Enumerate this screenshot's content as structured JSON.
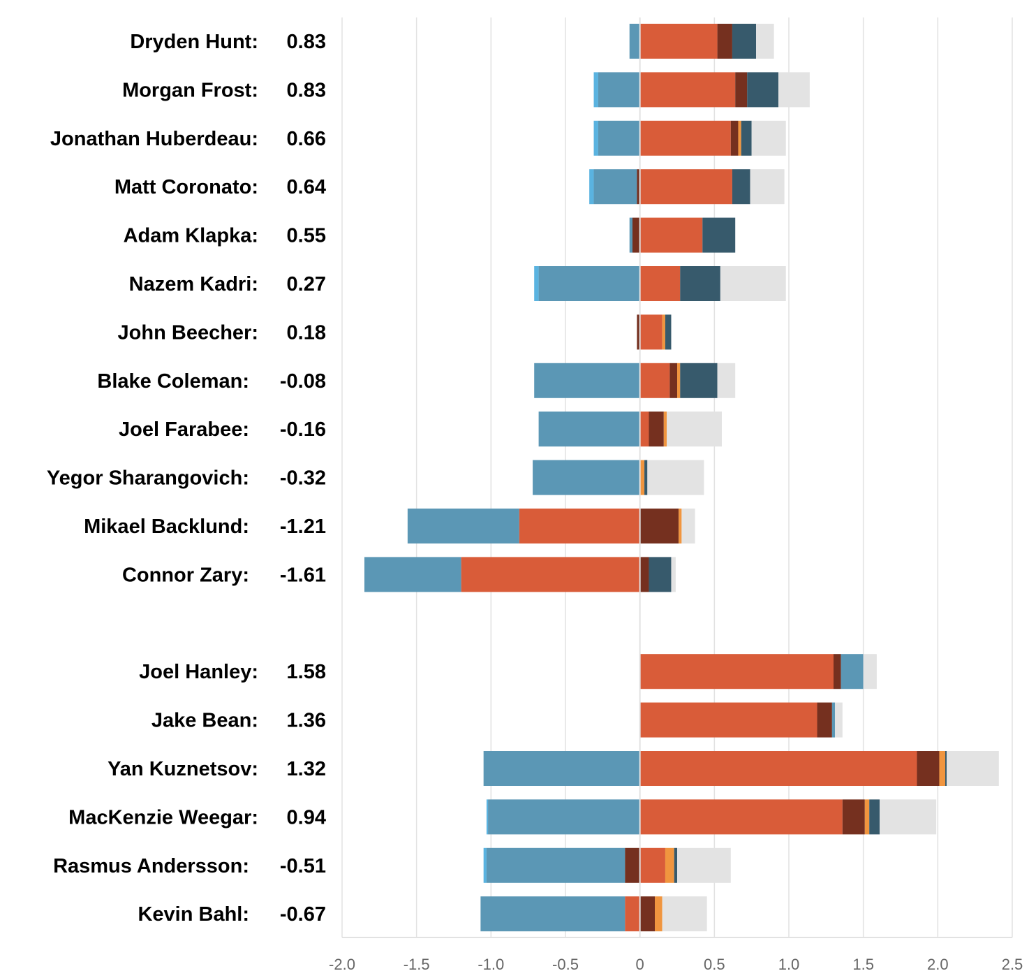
{
  "chart_data": {
    "type": "bar",
    "stacked": true,
    "diverging": true,
    "title": "",
    "xlabel": "",
    "ylabel": "",
    "xlim": [
      -2.0,
      2.5
    ],
    "xticks": [
      "-2.0",
      "-1.5",
      "-1.0",
      "-0.5",
      "0",
      "0.5",
      "1.0",
      "1.5",
      "2.0",
      "2.5"
    ],
    "xtick_values": [
      -2.0,
      -1.5,
      -1.0,
      -0.5,
      0,
      0.5,
      1.0,
      1.5,
      2.0,
      2.5
    ],
    "grid": true,
    "colors": {
      "orange": "#d95c39",
      "brown": "#75301f",
      "slate": "#375a6c",
      "gray": "#e3e3e3",
      "steel": "#5b97b5",
      "lightblue": "#5ab3e0",
      "lightorange": "#f0953f"
    },
    "groups": [
      {
        "rows": [
          {
            "name": "Dryden Hunt:",
            "value": "0.83",
            "segments": [
              [
                "steel",
                -0.07,
                0
              ],
              [
                "orange",
                0,
                0.52
              ],
              [
                "brown",
                0.52,
                0.62
              ],
              [
                "slate",
                0.62,
                0.78
              ],
              [
                "gray",
                0.78,
                0.9
              ]
            ]
          },
          {
            "name": "Morgan Frost:",
            "value": "0.83",
            "segments": [
              [
                "lightblue",
                -0.31,
                -0.28
              ],
              [
                "steel",
                -0.28,
                0
              ],
              [
                "orange",
                0,
                0.64
              ],
              [
                "brown",
                0.64,
                0.72
              ],
              [
                "slate",
                0.72,
                0.93
              ],
              [
                "gray",
                0.93,
                1.14
              ]
            ]
          },
          {
            "name": "Jonathan Huberdeau:",
            "value": "0.66",
            "segments": [
              [
                "lightblue",
                -0.31,
                -0.28
              ],
              [
                "steel",
                -0.28,
                0
              ],
              [
                "orange",
                0,
                0.61
              ],
              [
                "brown",
                0.61,
                0.66
              ],
              [
                "lightorange",
                0.66,
                0.68
              ],
              [
                "slate",
                0.68,
                0.75
              ],
              [
                "gray",
                0.75,
                0.98
              ]
            ]
          },
          {
            "name": "Matt Coronato:",
            "value": "0.64",
            "segments": [
              [
                "lightblue",
                -0.34,
                -0.31
              ],
              [
                "steel",
                -0.31,
                -0.02
              ],
              [
                "brown",
                -0.02,
                0
              ],
              [
                "orange",
                0,
                0.62
              ],
              [
                "slate",
                0.62,
                0.74
              ],
              [
                "gray",
                0.74,
                0.97
              ]
            ]
          },
          {
            "name": "Adam Klapka:",
            "value": "0.55",
            "segments": [
              [
                "steel",
                -0.07,
                -0.05
              ],
              [
                "brown",
                -0.05,
                0
              ],
              [
                "orange",
                0,
                0.42
              ],
              [
                "slate",
                0.42,
                0.64
              ]
            ]
          },
          {
            "name": "Nazem Kadri:",
            "value": "0.27",
            "segments": [
              [
                "lightblue",
                -0.71,
                -0.68
              ],
              [
                "steel",
                -0.68,
                0
              ],
              [
                "orange",
                0,
                0.27
              ],
              [
                "slate",
                0.27,
                0.54
              ],
              [
                "gray",
                0.54,
                0.98
              ]
            ]
          },
          {
            "name": "John Beecher:",
            "value": "0.18",
            "segments": [
              [
                "brown",
                -0.02,
                0
              ],
              [
                "orange",
                0,
                0.15
              ],
              [
                "lightorange",
                0.15,
                0.17
              ],
              [
                "slate",
                0.17,
                0.21
              ]
            ]
          },
          {
            "name": "Blake Coleman:",
            "value": "-0.08",
            "segments": [
              [
                "steel",
                -0.71,
                0
              ],
              [
                "orange",
                0,
                0.2
              ],
              [
                "brown",
                0.2,
                0.25
              ],
              [
                "lightorange",
                0.25,
                0.27
              ],
              [
                "slate",
                0.27,
                0.52
              ],
              [
                "gray",
                0.52,
                0.64
              ]
            ]
          },
          {
            "name": "Joel Farabee:",
            "value": "-0.16",
            "segments": [
              [
                "steel",
                -0.68,
                0
              ],
              [
                "orange",
                0,
                0.06
              ],
              [
                "brown",
                0.06,
                0.16
              ],
              [
                "lightorange",
                0.16,
                0.18
              ],
              [
                "gray",
                0.18,
                0.55
              ]
            ]
          },
          {
            "name": "Yegor Sharangovich:",
            "value": "-0.32",
            "segments": [
              [
                "steel",
                -0.72,
                0
              ],
              [
                "lightorange",
                0,
                0.03
              ],
              [
                "slate",
                0.03,
                0.05
              ],
              [
                "gray",
                0.05,
                0.43
              ]
            ]
          },
          {
            "name": "Mikael Backlund:",
            "value": "-1.21",
            "segments": [
              [
                "steel",
                -1.56,
                -0.81
              ],
              [
                "orange",
                -0.81,
                0
              ],
              [
                "brown",
                0,
                0.26
              ],
              [
                "lightorange",
                0.26,
                0.28
              ],
              [
                "gray",
                0.28,
                0.37
              ]
            ]
          },
          {
            "name": "Connor Zary:",
            "value": "-1.61",
            "segments": [
              [
                "steel",
                -1.85,
                -1.2
              ],
              [
                "orange",
                -1.2,
                0
              ],
              [
                "brown",
                0,
                0.06
              ],
              [
                "slate",
                0.06,
                0.21
              ],
              [
                "gray",
                0.21,
                0.24
              ]
            ]
          }
        ]
      },
      {
        "rows": [
          {
            "name": "Joel Hanley:",
            "value": "1.58",
            "segments": [
              [
                "orange",
                0,
                1.3
              ],
              [
                "brown",
                1.3,
                1.35
              ],
              [
                "steel",
                1.35,
                1.5
              ],
              [
                "gray",
                1.5,
                1.59
              ]
            ]
          },
          {
            "name": "Jake Bean:",
            "value": "1.36",
            "segments": [
              [
                "orange",
                0,
                1.19
              ],
              [
                "brown",
                1.19,
                1.29
              ],
              [
                "steel",
                1.29,
                1.31
              ],
              [
                "gray",
                1.31,
                1.36
              ]
            ]
          },
          {
            "name": "Yan Kuznetsov:",
            "value": "1.32",
            "segments": [
              [
                "steel",
                -1.05,
                0
              ],
              [
                "orange",
                0,
                1.86
              ],
              [
                "brown",
                1.86,
                2.01
              ],
              [
                "lightorange",
                2.01,
                2.05
              ],
              [
                "slate",
                2.05,
                2.06
              ],
              [
                "gray",
                2.06,
                2.41
              ]
            ]
          },
          {
            "name": "MacKenzie Weegar:",
            "value": "0.94",
            "segments": [
              [
                "lightblue",
                -1.03,
                -1.02
              ],
              [
                "steel",
                -1.02,
                0
              ],
              [
                "orange",
                0,
                1.36
              ],
              [
                "brown",
                1.36,
                1.51
              ],
              [
                "lightorange",
                1.51,
                1.54
              ],
              [
                "slate",
                1.54,
                1.61
              ],
              [
                "gray",
                1.61,
                1.99
              ]
            ]
          },
          {
            "name": "Rasmus Andersson:",
            "value": "-0.51",
            "segments": [
              [
                "lightblue",
                -1.05,
                -1.03
              ],
              [
                "steel",
                -1.03,
                -0.1
              ],
              [
                "brown",
                -0.1,
                0
              ],
              [
                "orange",
                0,
                0.17
              ],
              [
                "lightorange",
                0.17,
                0.23
              ],
              [
                "slate",
                0.23,
                0.25
              ],
              [
                "gray",
                0.25,
                0.61
              ]
            ]
          },
          {
            "name": "Kevin Bahl:",
            "value": "-0.67",
            "segments": [
              [
                "steel",
                -1.07,
                -0.1
              ],
              [
                "orange",
                -0.1,
                0
              ],
              [
                "brown",
                0,
                0.1
              ],
              [
                "lightorange",
                0.1,
                0.15
              ],
              [
                "gray",
                0.15,
                0.45
              ]
            ]
          }
        ]
      }
    ]
  }
}
